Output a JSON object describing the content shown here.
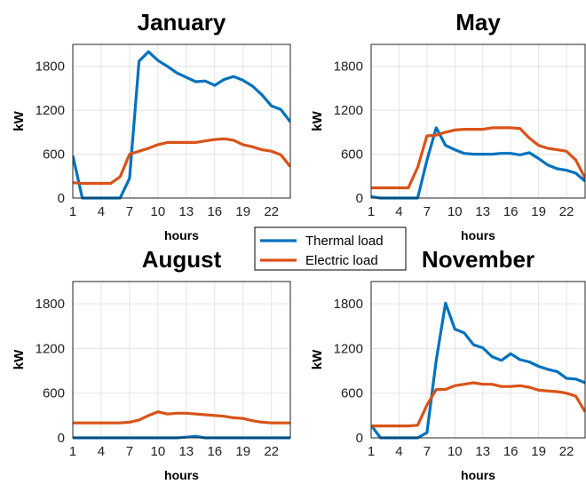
{
  "legend": {
    "placement": "center",
    "entries": [
      {
        "name": "Thermal load",
        "color": "#0072BD"
      },
      {
        "name": "Electric load",
        "color": "#D95319"
      }
    ]
  },
  "chart_data": [
    {
      "type": "line",
      "title": "January",
      "xlabel": "hours",
      "ylabel": "kW",
      "xlim": [
        1,
        24
      ],
      "ylim": [
        0,
        2100
      ],
      "xticks": [
        1,
        4,
        7,
        10,
        13,
        16,
        19,
        22
      ],
      "yticks": [
        0,
        600,
        1200,
        1800
      ],
      "grid": true,
      "x": [
        1,
        2,
        3,
        4,
        5,
        6,
        7,
        8,
        9,
        10,
        11,
        12,
        13,
        14,
        15,
        16,
        17,
        18,
        19,
        20,
        21,
        22,
        23,
        24
      ],
      "series": [
        {
          "name": "Thermal load",
          "color": "#0072BD",
          "values": [
            580,
            0,
            0,
            0,
            0,
            0,
            270,
            1870,
            2000,
            1880,
            1800,
            1710,
            1650,
            1590,
            1600,
            1540,
            1620,
            1660,
            1610,
            1530,
            1410,
            1260,
            1210,
            1040
          ]
        },
        {
          "name": "Electric load",
          "color": "#D95319",
          "values": [
            210,
            200,
            200,
            200,
            200,
            290,
            600,
            640,
            680,
            730,
            760,
            760,
            760,
            760,
            780,
            800,
            810,
            790,
            730,
            700,
            660,
            640,
            590,
            430
          ]
        }
      ]
    },
    {
      "type": "line",
      "title": "May",
      "xlabel": "hours",
      "ylabel": "kW",
      "xlim": [
        1,
        24
      ],
      "ylim": [
        0,
        2100
      ],
      "xticks": [
        1,
        4,
        7,
        10,
        13,
        16,
        19,
        22
      ],
      "yticks": [
        0,
        600,
        1200,
        1800
      ],
      "grid": true,
      "x": [
        1,
        2,
        3,
        4,
        5,
        6,
        7,
        8,
        9,
        10,
        11,
        12,
        13,
        14,
        15,
        16,
        17,
        18,
        19,
        20,
        21,
        22,
        23,
        24
      ],
      "series": [
        {
          "name": "Thermal load",
          "color": "#0072BD",
          "values": [
            20,
            0,
            0,
            0,
            0,
            0,
            520,
            960,
            720,
            660,
            610,
            600,
            600,
            600,
            610,
            610,
            590,
            620,
            540,
            450,
            400,
            380,
            340,
            230
          ]
        },
        {
          "name": "Electric load",
          "color": "#D95319",
          "values": [
            140,
            140,
            140,
            140,
            140,
            420,
            850,
            860,
            900,
            930,
            940,
            940,
            940,
            960,
            960,
            960,
            950,
            820,
            720,
            680,
            660,
            640,
            520,
            270
          ]
        }
      ]
    },
    {
      "type": "line",
      "title": "August",
      "xlabel": "hours",
      "ylabel": "kW",
      "xlim": [
        1,
        24
      ],
      "ylim": [
        0,
        2100
      ],
      "xticks": [
        1,
        4,
        7,
        10,
        13,
        16,
        19,
        22
      ],
      "yticks": [
        0,
        600,
        1200,
        1800
      ],
      "grid": true,
      "x": [
        1,
        2,
        3,
        4,
        5,
        6,
        7,
        8,
        9,
        10,
        11,
        12,
        13,
        14,
        15,
        16,
        17,
        18,
        19,
        20,
        21,
        22,
        23,
        24
      ],
      "series": [
        {
          "name": "Thermal load",
          "color": "#0072BD",
          "values": [
            0,
            0,
            0,
            0,
            0,
            0,
            0,
            0,
            0,
            0,
            0,
            0,
            10,
            20,
            0,
            0,
            0,
            0,
            0,
            0,
            0,
            0,
            0,
            0
          ]
        },
        {
          "name": "Electric load",
          "color": "#D95319",
          "values": [
            200,
            200,
            200,
            200,
            200,
            200,
            210,
            240,
            300,
            350,
            320,
            330,
            330,
            320,
            310,
            300,
            290,
            270,
            260,
            230,
            210,
            200,
            200,
            200
          ]
        }
      ]
    },
    {
      "type": "line",
      "title": "November",
      "xlabel": "hours",
      "ylabel": "kW",
      "xlim": [
        1,
        24
      ],
      "ylim": [
        0,
        2100
      ],
      "xticks": [
        1,
        4,
        7,
        10,
        13,
        16,
        19,
        22
      ],
      "yticks": [
        0,
        600,
        1200,
        1800
      ],
      "grid": true,
      "x": [
        1,
        2,
        3,
        4,
        5,
        6,
        7,
        8,
        9,
        10,
        11,
        12,
        13,
        14,
        15,
        16,
        17,
        18,
        19,
        20,
        21,
        22,
        23,
        24
      ],
      "series": [
        {
          "name": "Thermal load",
          "color": "#0072BD",
          "values": [
            170,
            0,
            0,
            0,
            0,
            0,
            70,
            1040,
            1810,
            1460,
            1410,
            1250,
            1210,
            1090,
            1040,
            1130,
            1050,
            1020,
            960,
            920,
            890,
            800,
            790,
            740
          ]
        },
        {
          "name": "Electric load",
          "color": "#D95319",
          "values": [
            160,
            160,
            160,
            160,
            160,
            170,
            440,
            650,
            650,
            700,
            720,
            740,
            720,
            720,
            690,
            690,
            700,
            680,
            640,
            630,
            620,
            600,
            560,
            350
          ]
        }
      ]
    }
  ]
}
